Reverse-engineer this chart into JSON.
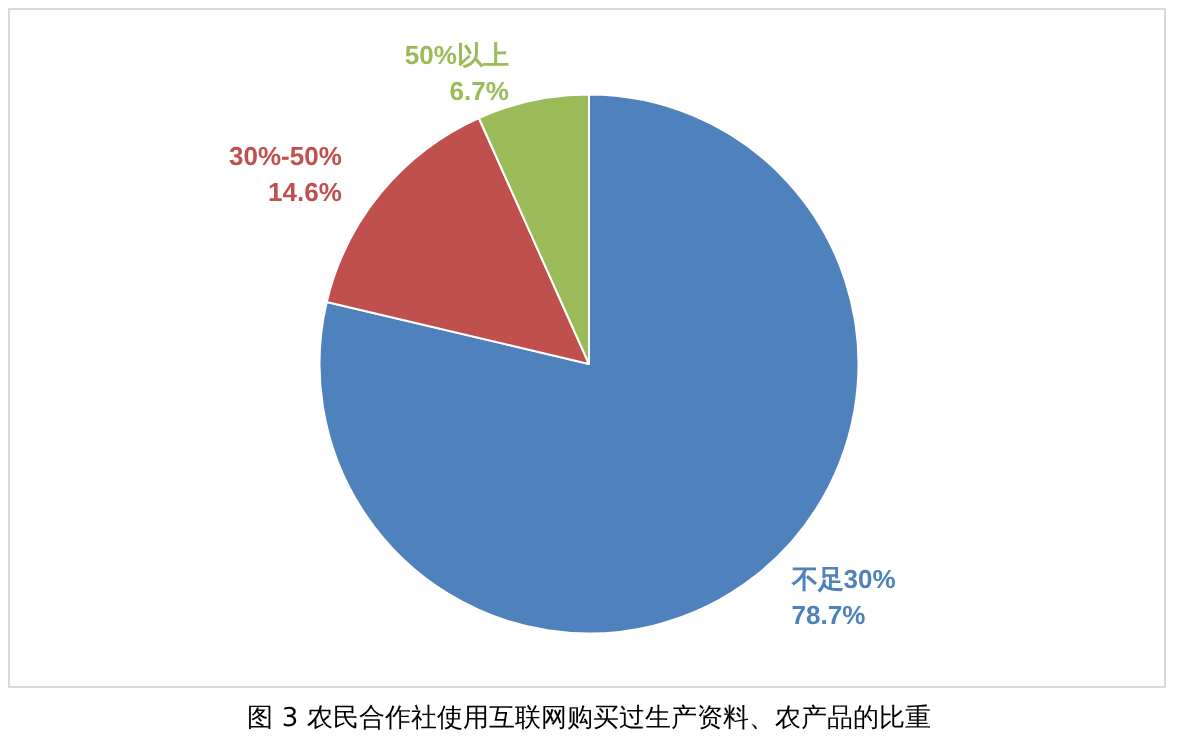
{
  "chart_data": {
    "type": "pie",
    "title": "图 3 农民合作社使用互联网购买过生产资料、农产品的比重",
    "categories": [
      "不足30%",
      "30%-50%",
      "50%以上"
    ],
    "values": [
      78.7,
      14.6,
      6.7
    ],
    "colors": [
      "#4f81bd",
      "#c0504d",
      "#9bbb59"
    ],
    "value_labels": [
      "78.7%",
      "14.6%",
      "6.7%"
    ],
    "legend": false
  }
}
